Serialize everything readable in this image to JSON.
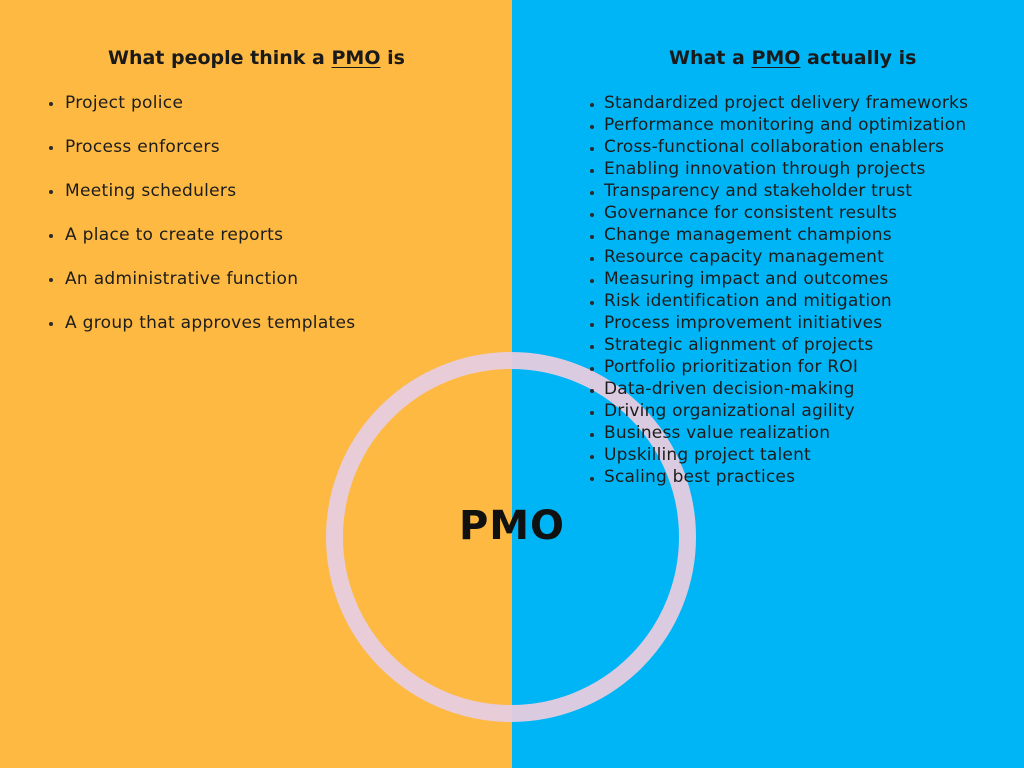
{
  "left": {
    "heading": {
      "before": "What people think a ",
      "emphasis": "PMO",
      "after": " is"
    },
    "items": [
      "Project police",
      "Process enforcers",
      "Meeting schedulers",
      "A place to create reports",
      "An administrative function",
      "A group that approves templates"
    ]
  },
  "right": {
    "heading": {
      "before": "What a ",
      "emphasis": "PMO",
      "after": " actually is"
    },
    "items": [
      "Standardized project delivery frameworks",
      "Performance monitoring and optimization",
      "Cross-functional collaboration enablers",
      "Enabling innovation through projects",
      "Transparency and stakeholder trust",
      "Governance for consistent results",
      "Change management champions",
      "Resource capacity management",
      "Measuring impact and outcomes",
      "Risk identification and mitigation",
      "Process improvement initiatives",
      "Strategic alignment of projects",
      "Portfolio prioritization for ROI",
      "Data-driven decision-making",
      "Driving organizational agility",
      "Business value realization",
      "Upskilling project talent",
      "Scaling best practices"
    ]
  },
  "center": {
    "label": "PMO"
  },
  "colors": {
    "left_background": "#FDB941",
    "right_background": "#00B5F6",
    "ring": "#E7CCDF"
  }
}
